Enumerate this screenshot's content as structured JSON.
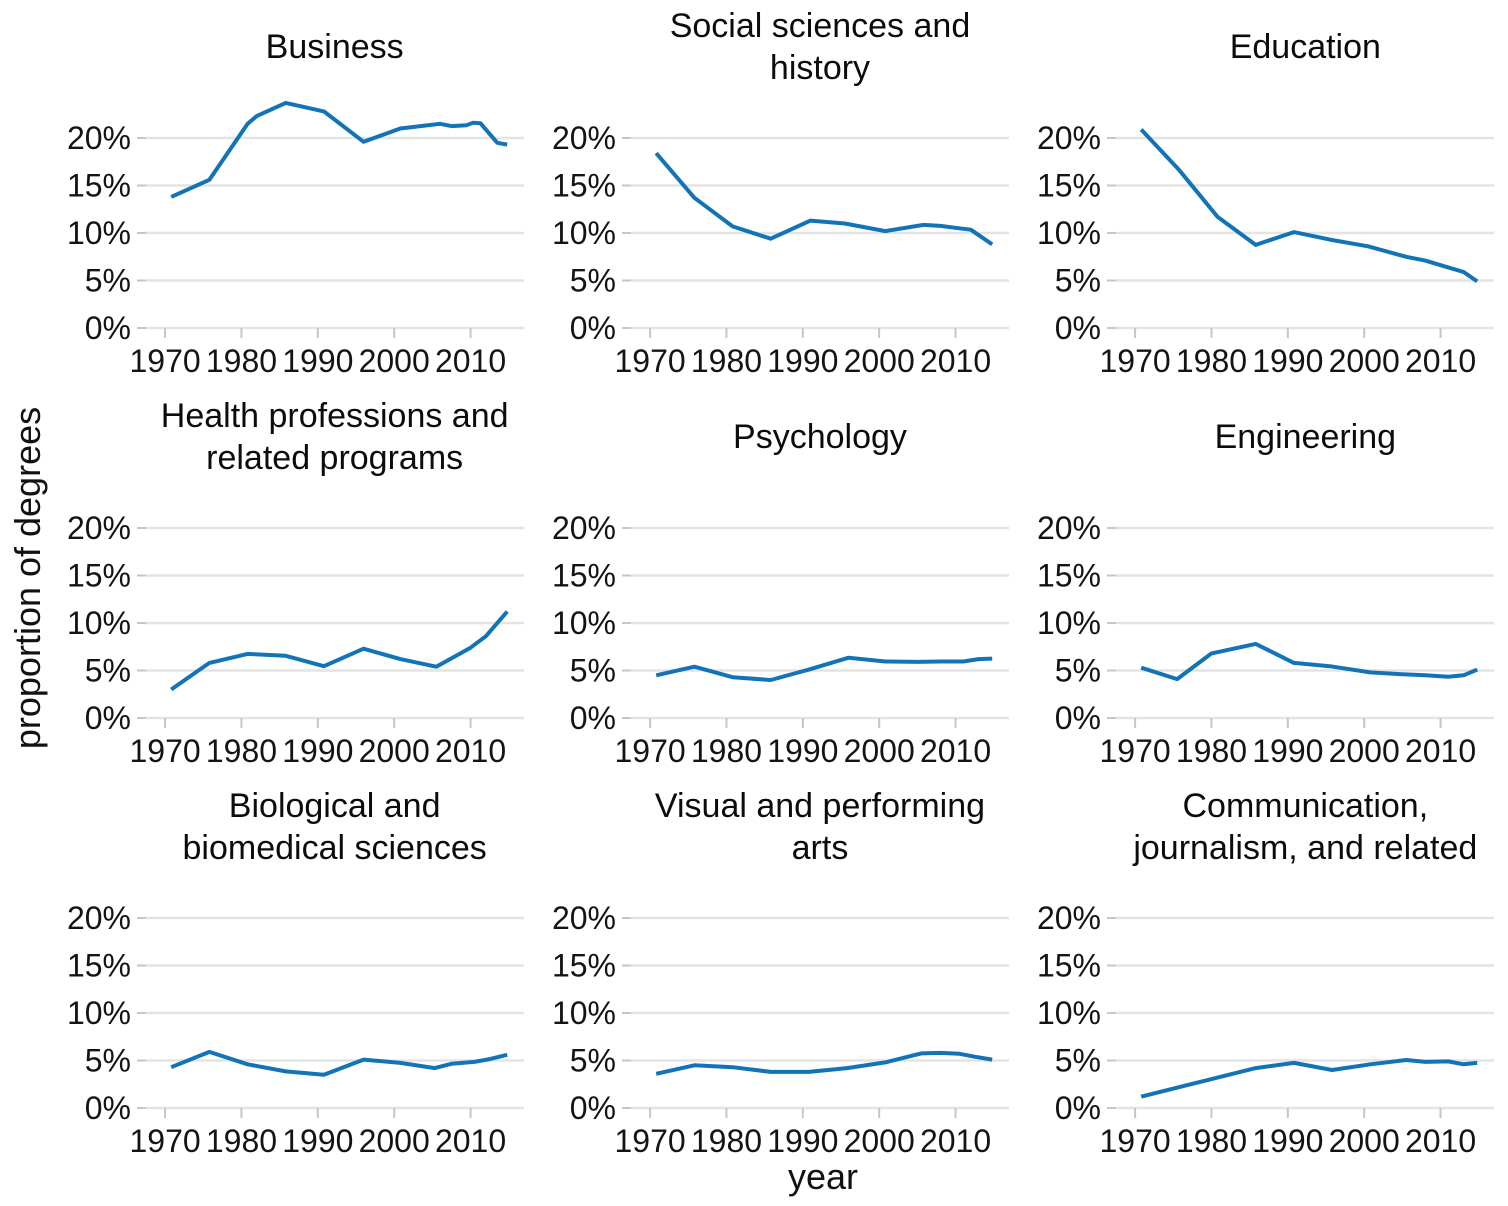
{
  "figure": {
    "ylabel": "proportion of degrees",
    "xlabel": "year",
    "line_color": "#1274b6",
    "grid_color": "#e4e4e4",
    "tick_mark_color": "#c6c6c6",
    "text_color": "#141414",
    "background": "#ffffff"
  },
  "axes": {
    "ylim": [
      0,
      24
    ],
    "xlim": [
      1967.5,
      2017
    ],
    "yticks": [
      0,
      5,
      10,
      15,
      20
    ],
    "ytick_labels": [
      "0%",
      "5%",
      "10%",
      "15%",
      "20%"
    ],
    "xticks": [
      1970,
      1980,
      1990,
      2000,
      2010
    ],
    "xtick_labels": [
      "1970",
      "1980",
      "1990",
      "2000",
      "2010"
    ],
    "grid": "horizontal",
    "legend": "none"
  },
  "chart_data": [
    {
      "type": "line",
      "title": "Business",
      "x": [
        1970.8,
        1975.8,
        1980.8,
        1982,
        1985.8,
        1990.8,
        1996,
        2000.8,
        2004,
        2006,
        2007.5,
        2009.5,
        2010.3,
        2011.3,
        2013.5,
        2014.8
      ],
      "values": [
        13.8,
        15.6,
        21.5,
        22.3,
        23.7,
        22.8,
        19.6,
        21.0,
        21.3,
        21.5,
        21.25,
        21.35,
        21.6,
        21.55,
        19.5,
        19.3
      ]
    },
    {
      "type": "line",
      "title": "Social sciences and history",
      "x": [
        1970.8,
        1975.8,
        1980.8,
        1985.8,
        1991,
        1995.5,
        2000.8,
        2005.8,
        2008,
        2010.5,
        2012,
        2014.8
      ],
      "values": [
        18.4,
        13.7,
        10.7,
        9.4,
        11.3,
        11.0,
        10.2,
        10.85,
        10.75,
        10.5,
        10.35,
        8.8
      ]
    },
    {
      "type": "line",
      "title": "Education",
      "x": [
        1970.8,
        1975.8,
        1980.8,
        1985.8,
        1990.8,
        1995.5,
        2000.5,
        2005.5,
        2008,
        2010.5,
        2013,
        2014.8
      ],
      "values": [
        20.9,
        16.6,
        11.7,
        8.75,
        10.1,
        9.3,
        8.6,
        7.5,
        7.1,
        6.5,
        5.9,
        4.9
      ]
    },
    {
      "type": "line",
      "title": "Health professions and related programs",
      "x": [
        1970.8,
        1975.8,
        1980.8,
        1985.8,
        1990.8,
        1996,
        2000.8,
        2005.5,
        2008,
        2010,
        2012,
        2014.8
      ],
      "values": [
        3.0,
        5.8,
        6.75,
        6.55,
        5.45,
        7.3,
        6.2,
        5.4,
        6.5,
        7.4,
        8.6,
        11.2
      ]
    },
    {
      "type": "line",
      "title": "Psychology",
      "x": [
        1970.8,
        1975.8,
        1980.8,
        1985.8,
        1990.8,
        1996,
        2000.8,
        2005,
        2008,
        2011,
        2013,
        2014.8
      ],
      "values": [
        4.5,
        5.4,
        4.3,
        4.0,
        5.1,
        6.35,
        5.95,
        5.9,
        5.95,
        5.95,
        6.2,
        6.25
      ]
    },
    {
      "type": "line",
      "title": "Engineering",
      "x": [
        1970.8,
        1975.5,
        1980,
        1985.8,
        1990.8,
        1995.5,
        2000.8,
        2005,
        2008,
        2011,
        2013,
        2014.8
      ],
      "values": [
        5.3,
        4.1,
        6.8,
        7.8,
        5.8,
        5.45,
        4.8,
        4.6,
        4.5,
        4.35,
        4.5,
        5.1
      ]
    },
    {
      "type": "line",
      "title": "Biological and biomedical sciences",
      "x": [
        1970.8,
        1975.8,
        1980.8,
        1985.8,
        1990.8,
        1996,
        2000.8,
        2005.3,
        2007.5,
        2010.5,
        2012.5,
        2014.8
      ],
      "values": [
        4.3,
        5.9,
        4.6,
        3.85,
        3.5,
        5.1,
        4.75,
        4.2,
        4.65,
        4.85,
        5.15,
        5.6
      ]
    },
    {
      "type": "line",
      "title": "Visual and performing arts",
      "x": [
        1970.8,
        1975.8,
        1980.8,
        1985.8,
        1990.8,
        1995.8,
        2000.8,
        2005.5,
        2008,
        2010.5,
        2012.5,
        2014.8
      ],
      "values": [
        3.6,
        4.5,
        4.3,
        3.8,
        3.8,
        4.2,
        4.8,
        5.75,
        5.8,
        5.7,
        5.4,
        5.1
      ]
    },
    {
      "type": "line",
      "title": "Communication, journalism, and related",
      "x": [
        1970.8,
        1975.8,
        1980.8,
        1985.8,
        1990.8,
        1995.8,
        2000.8,
        2005.5,
        2008,
        2011,
        2013,
        2014.8
      ],
      "values": [
        1.2,
        2.2,
        3.2,
        4.2,
        4.75,
        4.0,
        4.6,
        5.05,
        4.85,
        4.9,
        4.6,
        4.75
      ]
    }
  ]
}
